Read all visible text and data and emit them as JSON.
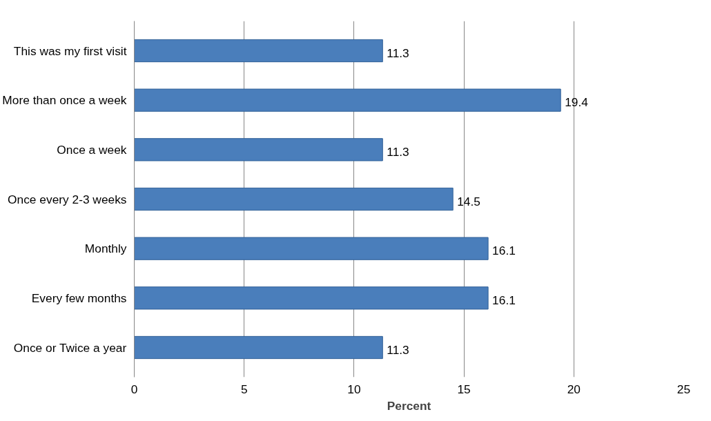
{
  "chart_data": {
    "type": "bar",
    "orientation": "horizontal",
    "xlabel": "Percent",
    "categories": [
      "This was my first visit",
      "More than once a week",
      "Once a week",
      "Once every 2-3 weeks",
      "Monthly",
      "Every few months",
      "Once or Twice a year"
    ],
    "values": [
      11.3,
      19.4,
      11.3,
      14.5,
      16.1,
      16.1,
      11.3
    ],
    "color": "#4a7ebb",
    "xlim": [
      0,
      25
    ],
    "xticks": [
      0,
      5,
      10,
      15,
      20,
      25
    ],
    "grid": "x",
    "data_labels": true
  }
}
